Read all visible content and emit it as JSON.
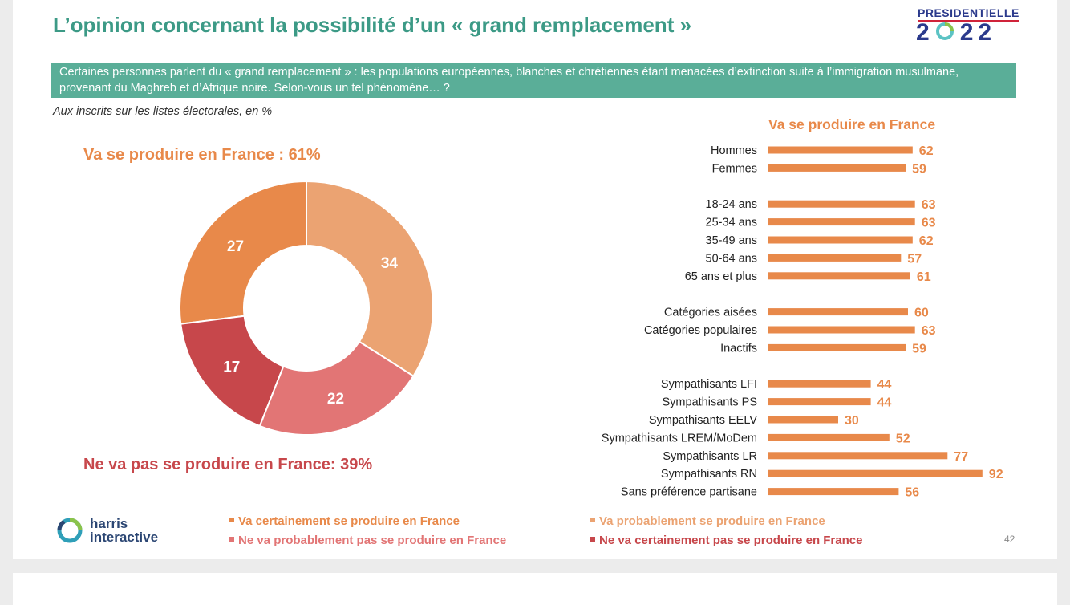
{
  "title": "L’opinion concernant la possibilité d’un « grand remplacement »",
  "logo": {
    "top": "PRESIDENTIELLE",
    "year_left": "2",
    "year_right": "22"
  },
  "question": "Certaines personnes parlent du « grand remplacement » : les populations européennes, blanches et chrétiennes étant menacées d’extinction suite à l’immigration musulmane, provenant du Maghreb et d’Afrique noire. Selon-vous un tel phénomène… ?",
  "note": "Aux inscrits sur les listes électorales, en %",
  "donut_title": "Va se produire en France : 61%",
  "donut_bottom": "Ne va pas se produire en France: 39%",
  "bar_title": "Va se produire en France",
  "legend": [
    {
      "label": "Va certainement se produire en France",
      "color": "#e8894a"
    },
    {
      "label": "Va probablement se produire en France",
      "color": "#eba372"
    },
    {
      "label": "Ne va probablement pas se produire en France",
      "color": "#e27575"
    },
    {
      "label": "Ne va certainement pas se produire en France",
      "color": "#c7474b"
    }
  ],
  "brand": {
    "line1": "harris",
    "line2": "interactive"
  },
  "page_number": "42",
  "chart_data": [
    {
      "type": "pie",
      "subtype": "donut",
      "slices": [
        {
          "name": "Va certainement se produire en France",
          "value": 27,
          "color": "#e8894a"
        },
        {
          "name": "Va probablement se produire en France",
          "value": 34,
          "color": "#eba372"
        },
        {
          "name": "Ne va probablement pas se produire en France",
          "value": 22,
          "color": "#e27575"
        },
        {
          "name": "Ne va certainement pas se produire en France",
          "value": 17,
          "color": "#c7474b"
        }
      ]
    },
    {
      "type": "bar",
      "orientation": "horizontal",
      "title": "Va se produire en France",
      "bar_color": "#e8894a",
      "groups": [
        {
          "items": [
            {
              "label": "Hommes",
              "value": 62
            },
            {
              "label": "Femmes",
              "value": 59
            }
          ]
        },
        {
          "items": [
            {
              "label": "18-24 ans",
              "value": 63
            },
            {
              "label": "25-34 ans",
              "value": 63
            },
            {
              "label": "35-49 ans",
              "value": 62
            },
            {
              "label": "50-64 ans",
              "value": 57
            },
            {
              "label": "65 ans et plus",
              "value": 61
            }
          ]
        },
        {
          "items": [
            {
              "label": "Catégories aisées",
              "value": 60
            },
            {
              "label": "Catégories populaires",
              "value": 63
            },
            {
              "label": "Inactifs",
              "value": 59
            }
          ]
        },
        {
          "items": [
            {
              "label": "Sympathisants LFI",
              "value": 44
            },
            {
              "label": "Sympathisants PS",
              "value": 44
            },
            {
              "label": "Sympathisants EELV",
              "value": 30
            },
            {
              "label": "Sympathisants LREM/MoDem",
              "value": 52
            },
            {
              "label": "Sympathisants LR",
              "value": 77
            },
            {
              "label": "Sympathisants RN",
              "value": 92
            },
            {
              "label": "Sans préférence partisane",
              "value": 56
            }
          ]
        }
      ]
    }
  ]
}
